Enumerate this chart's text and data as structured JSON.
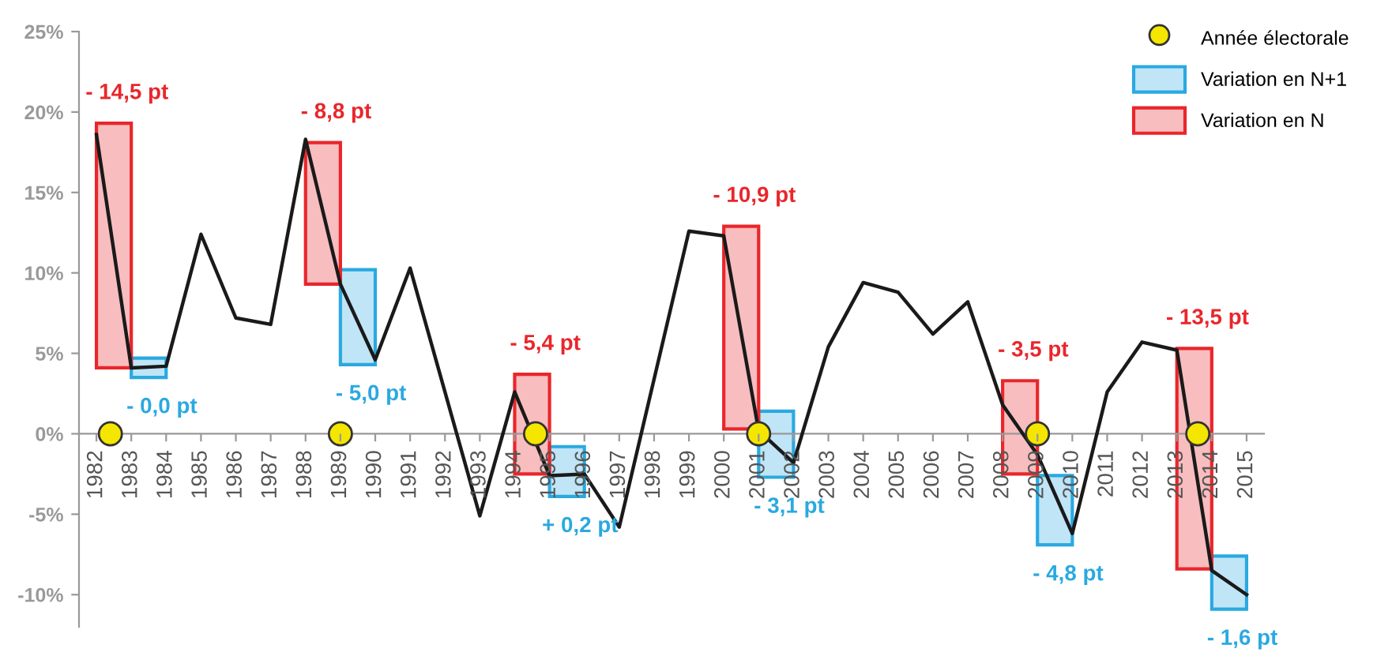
{
  "chart_data": {
    "type": "line",
    "x": [
      1982,
      1983,
      1984,
      1985,
      1986,
      1987,
      1988,
      1989,
      1990,
      1991,
      1992,
      1993,
      1994,
      1995,
      1996,
      1997,
      1998,
      1999,
      2000,
      2001,
      2002,
      2003,
      2004,
      2005,
      2006,
      2007,
      2008,
      2009,
      2010,
      2011,
      2012,
      2013,
      2014,
      2015
    ],
    "series": [
      {
        "color": "#1a1a1a",
        "values": [
          18.6,
          4.1,
          4.2,
          12.4,
          7.2,
          6.8,
          18.3,
          9.3,
          4.6,
          10.3,
          2.6,
          -5.1,
          2.6,
          -2.6,
          -2.5,
          -5.8,
          3.4,
          12.6,
          12.3,
          0.2,
          -1.8,
          5.4,
          9.4,
          8.8,
          6.2,
          8.2,
          1.8,
          -1.3,
          -6.2,
          2.6,
          5.7,
          5.2,
          -8.5,
          -10.0
        ]
      },
      {
        "type": "bar",
        "name": "Variation en N+1",
        "color": "#2aa9e0",
        "x": [
          1983.5,
          1989.5,
          1995.5,
          2001.5,
          2009.5,
          2014.5
        ],
        "base": [
          3.5,
          4.3,
          -3.9,
          -2.7,
          -6.9,
          -10.9
        ],
        "values": [
          1.2,
          5.9,
          3.1,
          4.1,
          4.3,
          3.3
        ]
      },
      {
        "type": "bar",
        "name": "Variation en N",
        "color": "#e9262b",
        "x": [
          1982.5,
          1988.5,
          1994.5,
          2000.5,
          2008.5,
          2013.5
        ],
        "base": [
          4.1,
          9.3,
          -2.5,
          0.3,
          -2.5,
          -8.4
        ],
        "values": [
          15.2,
          8.8,
          6.2,
          12.6,
          5.8,
          13.7
        ]
      },
      {
        "type": "scatter",
        "name": "Année électorale",
        "color": "#f5e600",
        "marker": "circle",
        "x": [
          1982.4,
          1989,
          1994.6,
          2001,
          2009,
          2013.6
        ],
        "values": [
          0,
          0,
          0,
          0,
          0,
          0
        ]
      }
    ],
    "xlim": [
      1981.5,
      2015.5
    ],
    "xticks": [
      1982,
      1983,
      1984,
      1985,
      1986,
      1987,
      1988,
      1989,
      1990,
      1991,
      1992,
      1993,
      1994,
      1995,
      1996,
      1997,
      1998,
      1999,
      2000,
      2001,
      2002,
      2003,
      2004,
      2005,
      2006,
      2007,
      2008,
      2009,
      2010,
      2011,
      2012,
      2013,
      2014,
      2015
    ],
    "ylim": [
      -12,
      25
    ],
    "yticks": [
      {
        "value": -10,
        "label": "-10%"
      },
      {
        "value": -5,
        "label": "-5%"
      },
      {
        "value": 0,
        "label": "0%"
      },
      {
        "value": 5,
        "label": "5%"
      },
      {
        "value": 10,
        "label": "10%"
      },
      {
        "value": 15,
        "label": "15%"
      },
      {
        "value": 20,
        "label": "20%"
      },
      {
        "value": 25,
        "label": "25%"
      }
    ],
    "annotations": [
      {
        "text": "- 14,5 pt",
        "x": 1982.5,
        "y": 19.3
      },
      {
        "text": "- 8,8 pt",
        "x": 1988.5,
        "y": 18.1
      },
      {
        "text": "- 5,4 pt",
        "x": 1994.5,
        "y": 3.7
      },
      {
        "text": "- 10,9 pt",
        "x": 2000.5,
        "y": 12.9
      },
      {
        "text": "- 3,5 pt",
        "x": 2008.5,
        "y": 3.3
      },
      {
        "text": "- 13,5 pt",
        "x": 2013.5,
        "y": 5.3
      },
      {
        "text": "- 0,0 pt",
        "x": 1983.5,
        "y": 3.5
      },
      {
        "text": "- 5,0 pt",
        "x": 1989.5,
        "y": 4.3
      },
      {
        "text": "+ 0,2 pt",
        "x": 1995.5,
        "y": -3.9
      },
      {
        "text": "- 3,1 pt",
        "x": 2001.5,
        "y": -2.7
      },
      {
        "text": "- 4,8 pt",
        "x": 2009.5,
        "y": -6.9
      },
      {
        "text": "- 1,6 pt",
        "x": 2014.5,
        "y": -10.9
      }
    ],
    "grid": false,
    "legend": "top right"
  }
}
